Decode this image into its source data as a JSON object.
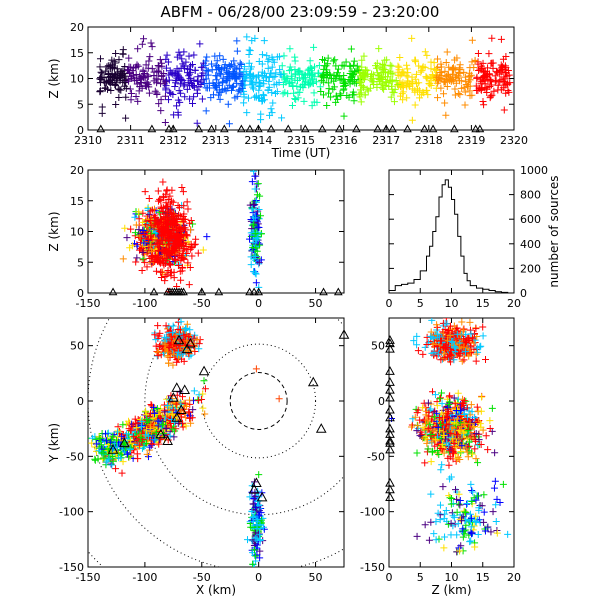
{
  "title": "ABFM - 06/28/00 23:09:59 - 23:20:00",
  "chart_data": [
    {
      "id": "time_height",
      "type": "scatter",
      "xlabel": "Time (UT)",
      "ylabel": "Z (km)",
      "xlim": [
        2310,
        2320
      ],
      "ylim": [
        0,
        20
      ],
      "xticks": [
        2310,
        2311,
        2312,
        2313,
        2314,
        2315,
        2316,
        2317,
        2318,
        2319,
        2320
      ],
      "yticks": [
        0,
        5,
        10,
        15,
        20
      ],
      "marker": "plus",
      "color_by": "time",
      "color_scale": [
        "#1a0033",
        "#4b0082",
        "#2a00c8",
        "#0055ff",
        "#00c8ff",
        "#00ffb0",
        "#00e000",
        "#9cff00",
        "#ffe000",
        "#ff8c00",
        "#ff0000"
      ],
      "density_profile": [
        {
          "t": 2310.3,
          "z_mean": 10,
          "z_spread": 3.5
        },
        {
          "t": 2311.5,
          "z_mean": 10,
          "z_spread": 4
        },
        {
          "t": 2312.5,
          "z_mean": 10,
          "z_spread": 4.5
        },
        {
          "t": 2313.5,
          "z_mean": 10,
          "z_spread": 4
        },
        {
          "t": 2314.5,
          "z_mean": 10,
          "z_spread": 4
        },
        {
          "t": 2315.5,
          "z_mean": 10,
          "z_spread": 4
        },
        {
          "t": 2316.5,
          "z_mean": 10,
          "z_spread": 3.5
        },
        {
          "t": 2317.5,
          "z_mean": 10,
          "z_spread": 3.5
        },
        {
          "t": 2318.5,
          "z_mean": 10,
          "z_spread": 3.5
        },
        {
          "t": 2319.5,
          "z_mean": 10,
          "z_spread": 3.5
        }
      ],
      "ground_markers": {
        "symbol": "triangle",
        "z": 0,
        "times": [
          2310.3,
          2311.5,
          2311.9,
          2312.0,
          2312.6,
          2312.9,
          2313.2,
          2313.6,
          2313.8,
          2314.0,
          2314.3,
          2314.7,
          2315.1,
          2315.5,
          2315.9,
          2316.3,
          2316.8,
          2317.0,
          2317.15,
          2317.5,
          2317.9,
          2318.1,
          2318.6,
          2319.1,
          2319.2
        ]
      }
    },
    {
      "id": "x_z",
      "type": "scatter",
      "xlabel": "",
      "ylabel": "Z (km)",
      "xlim": [
        -150,
        75
      ],
      "ylim": [
        0,
        20
      ],
      "xticks": [
        -150,
        -100,
        -50,
        0,
        50
      ],
      "yticks": [
        0,
        5,
        10,
        15,
        20
      ],
      "marker": "plus",
      "clusters": [
        {
          "x_center": -85,
          "x_spread": 22,
          "z_center": 9,
          "z_spread": 4,
          "color_mix": [
            "#ff0000",
            "#ff8c00",
            "#ffe000",
            "#00e000",
            "#00c8ff",
            "#0000ff",
            "#4b0082"
          ]
        },
        {
          "x_center": -3,
          "x_spread": 4,
          "z_center": 10,
          "z_spread": 8,
          "color_mix": [
            "#00c8ff",
            "#00e000",
            "#0000ff",
            "#4b0082"
          ]
        }
      ],
      "ground_markers": {
        "symbol": "triangle",
        "z": 0,
        "x": [
          -128,
          -92,
          -80,
          -78,
          -76,
          -74,
          -72,
          -70,
          -68,
          -66,
          -50,
          -35,
          -8,
          -4,
          0,
          57,
          70
        ]
      }
    },
    {
      "id": "z_histogram",
      "type": "line",
      "xlabel": "",
      "ylabel": "number of sources",
      "xlim": [
        0,
        20
      ],
      "ylim": [
        0,
        1000
      ],
      "xticks": [
        0,
        5,
        10,
        15,
        20
      ],
      "yticks": [
        0,
        200,
        400,
        600,
        800,
        1000
      ],
      "y_axis_side": "right",
      "step": true,
      "x": [
        0,
        1,
        2,
        3,
        4,
        5,
        6,
        6.5,
        7,
        7.5,
        8,
        8.5,
        9,
        9.5,
        10,
        10.5,
        11,
        11.5,
        12,
        12.5,
        13,
        14,
        15,
        16,
        17,
        18,
        19,
        20
      ],
      "values": [
        20,
        60,
        70,
        80,
        110,
        180,
        300,
        380,
        500,
        620,
        780,
        880,
        920,
        860,
        760,
        640,
        460,
        300,
        160,
        100,
        60,
        40,
        30,
        20,
        10,
        5,
        0,
        0
      ]
    },
    {
      "id": "plan_view",
      "type": "scatter",
      "xlabel": "X (km)",
      "ylabel": "Y (km)",
      "xlim": [
        -150,
        75
      ],
      "ylim": [
        -150,
        75
      ],
      "xticks": [
        -150,
        -100,
        -50,
        0,
        50
      ],
      "yticks": [
        -150,
        -100,
        -50,
        0,
        50
      ],
      "marker": "plus",
      "range_rings_km": [
        25,
        50,
        100,
        150,
        200
      ],
      "range_rings_center": [
        0,
        0
      ],
      "clusters": [
        {
          "x_center": -72,
          "y_center": 52,
          "x_spread": 16,
          "y_spread": 14,
          "color_mix": [
            "#ff0000",
            "#ff8c00",
            "#00c8ff"
          ]
        },
        {
          "x_center": -95,
          "y_center": -25,
          "x_spread": 34,
          "y_spread": 20,
          "color_mix": [
            "#ff0000",
            "#ff8c00",
            "#ffe000",
            "#00e000",
            "#00c8ff",
            "#0000ff",
            "#4b0082"
          ]
        },
        {
          "x_center": -130,
          "y_center": -42,
          "x_spread": 14,
          "y_spread": 14,
          "color_mix": [
            "#00e000",
            "#00c8ff",
            "#0000ff",
            "#ffe000"
          ]
        },
        {
          "x_center": -2,
          "y_center": -110,
          "x_spread": 5,
          "y_spread": 32,
          "color_mix": [
            "#00c8ff",
            "#00e000",
            "#0000ff",
            "#4b0082"
          ]
        }
      ],
      "single_points": [
        {
          "x": -2,
          "y": 29,
          "color": "#ff4400"
        },
        {
          "x": 18,
          "y": 2,
          "color": "#ff4400"
        }
      ],
      "station_markers": {
        "symbol": "triangle",
        "points": [
          [
            -70,
            55
          ],
          [
            -60,
            52
          ],
          [
            -63,
            47
          ],
          [
            -48,
            27
          ],
          [
            -65,
            10
          ],
          [
            -72,
            12
          ],
          [
            -75,
            3
          ],
          [
            -68,
            -8
          ],
          [
            -72,
            -15
          ],
          [
            -86,
            -30
          ],
          [
            -80,
            -36
          ],
          [
            -118,
            -38
          ],
          [
            -128,
            -44
          ],
          [
            -2,
            -74
          ],
          [
            -4,
            -80
          ],
          [
            3,
            -87
          ],
          [
            48,
            17
          ],
          [
            55,
            -25
          ],
          [
            75,
            60
          ]
        ]
      }
    },
    {
      "id": "z_y",
      "type": "scatter",
      "xlabel": "Z (km)",
      "ylabel": "",
      "xlim": [
        0,
        20
      ],
      "ylim": [
        -150,
        75
      ],
      "xticks": [
        0,
        5,
        10,
        15,
        20
      ],
      "yticks": [
        -150,
        -100,
        -50,
        0,
        50
      ],
      "marker": "plus",
      "clusters": [
        {
          "z_center": 10,
          "z_spread": 4,
          "y_center": 52,
          "y_spread": 14,
          "color_mix": [
            "#ff0000",
            "#ff8c00",
            "#00c8ff"
          ]
        },
        {
          "z_center": 10,
          "z_spread": 5,
          "y_center": -25,
          "y_spread": 24,
          "color_mix": [
            "#ff0000",
            "#ff8c00",
            "#ffe000",
            "#00e000",
            "#00c8ff",
            "#0000ff",
            "#4b0082"
          ]
        },
        {
          "z_center": 12,
          "z_spread": 5,
          "y_center": -105,
          "y_spread": 30,
          "color_mix": [
            "#00c8ff",
            "#00e000",
            "#0000ff",
            "#4b0082",
            "#ffe000"
          ]
        }
      ],
      "station_markers": {
        "symbol": "triangle",
        "z": 0,
        "y": [
          55,
          52,
          47,
          27,
          17,
          10,
          3,
          -8,
          -15,
          -25,
          -30,
          -36,
          -38,
          -44,
          -74,
          -80,
          -87
        ]
      }
    }
  ]
}
